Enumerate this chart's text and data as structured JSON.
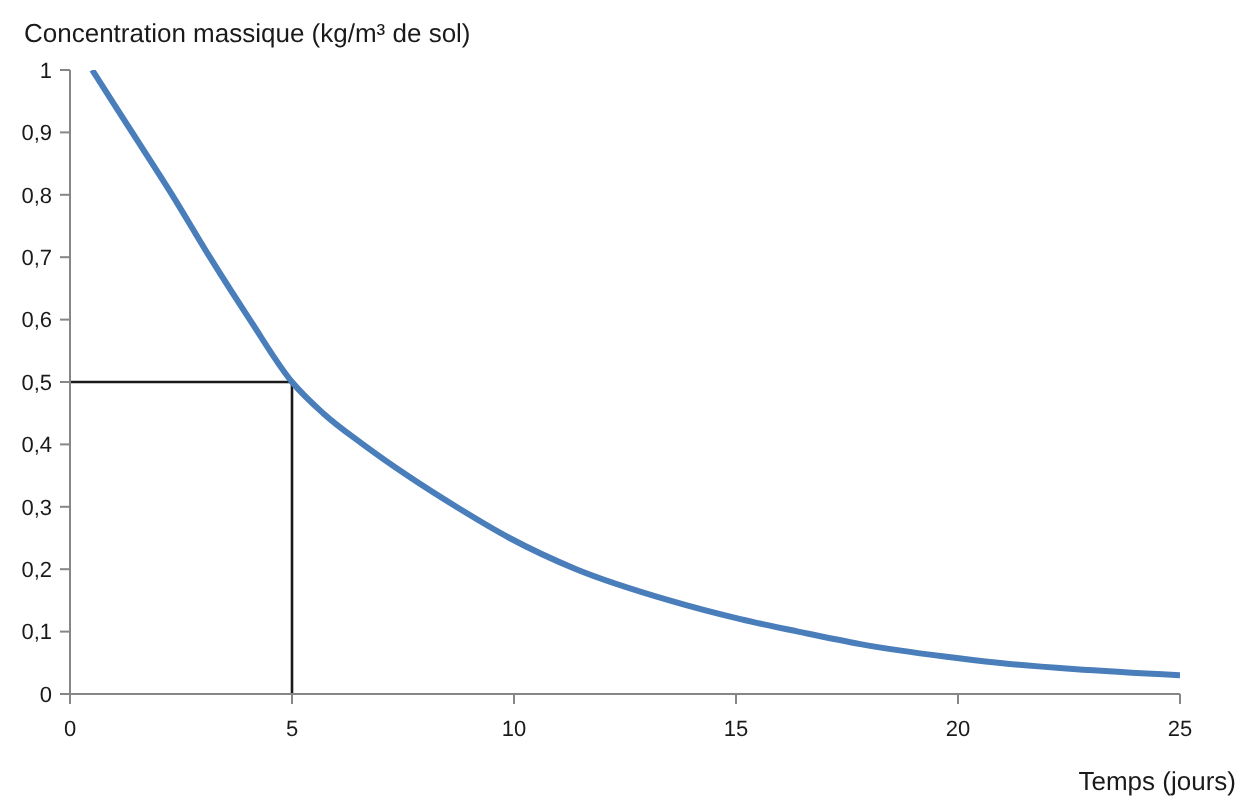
{
  "chart_data": {
    "type": "line",
    "xlabel": "Temps (jours)",
    "ylabel": "Concentration massique (kg/m³ de sol)",
    "xlim": [
      0,
      25
    ],
    "xticks": [
      0,
      5,
      10,
      15,
      20,
      25
    ],
    "ylim": [
      0,
      1
    ],
    "yticks": [
      0,
      {
        "value": 0.1,
        "label": "0,1"
      },
      {
        "value": 0.2,
        "label": "0,2"
      },
      {
        "value": 0.3,
        "label": "0,3"
      },
      {
        "value": 0.4,
        "label": "0,4"
      },
      {
        "value": 0.5,
        "label": "0,5"
      },
      {
        "value": 0.6,
        "label": "0,6"
      },
      {
        "value": 0.7,
        "label": "0,7"
      },
      {
        "value": 0.8,
        "label": "0,8"
      },
      {
        "value": 0.9,
        "label": "0,9"
      },
      1
    ],
    "marker": "none",
    "series": [
      {
        "color": "#4a7ebb",
        "x": [
          0.5,
          1.4,
          2.3,
          3.15,
          4.05,
          5,
          5.7,
          6.6,
          7.6,
          8.7,
          9.9,
          11.4,
          13.5,
          15.1,
          16.4,
          17.8,
          19.7,
          20.9,
          22.6,
          25
        ],
        "values": [
          1,
          0.9,
          0.8,
          0.7,
          0.6,
          0.5,
          0.45,
          0.4,
          0.35,
          0.3,
          0.25,
          0.2,
          0.15,
          0.12,
          0.1,
          0.08,
          0.06,
          0.05,
          0.04,
          0.03
        ]
      },
      {
        "color": "#1a1a1a",
        "x": [
          0,
          5,
          5
        ],
        "values": [
          0.5,
          0.5,
          0
        ]
      }
    ]
  }
}
